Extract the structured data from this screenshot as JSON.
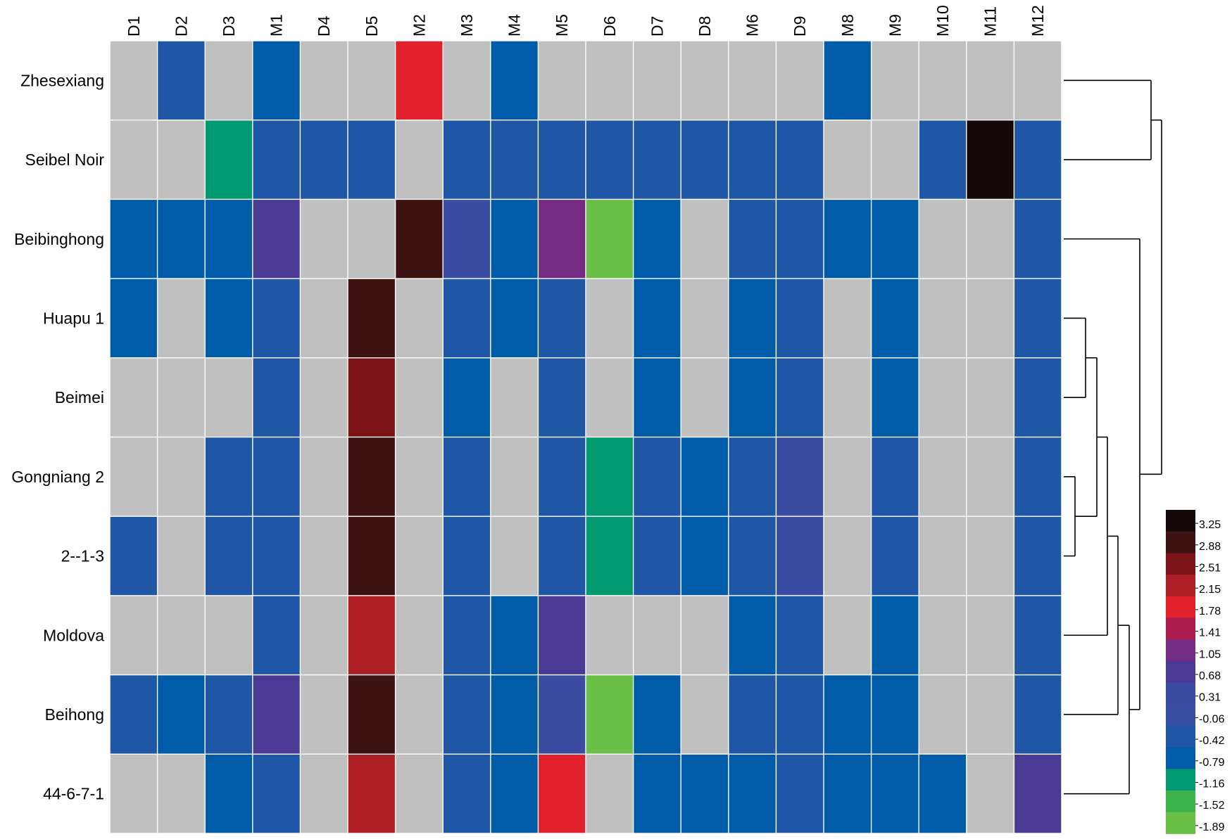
{
  "chart_data": {
    "type": "heatmap",
    "columns": [
      "D1",
      "D2",
      "D3",
      "M1",
      "D4",
      "D5",
      "M2",
      "M3",
      "M4",
      "M5",
      "D6",
      "D7",
      "D8",
      "M6",
      "D9",
      "M8",
      "M9",
      "M10",
      "M11",
      "M12"
    ],
    "rows": [
      "Zhesexiang",
      "Seibel Noir",
      "Beibinghong",
      "Huapu 1",
      "Beimei",
      "Gongniang 2",
      "2--1-3",
      "Moldova",
      "Beihong",
      "44-6-7-1"
    ],
    "values": [
      [
        null,
        -0.42,
        null,
        -0.79,
        null,
        null,
        1.78,
        null,
        -0.79,
        null,
        null,
        null,
        null,
        null,
        null,
        -0.79,
        null,
        null,
        null,
        null
      ],
      [
        null,
        null,
        -1.16,
        -0.42,
        -0.42,
        -0.42,
        null,
        -0.42,
        -0.42,
        -0.42,
        -0.42,
        -0.42,
        -0.42,
        -0.42,
        -0.42,
        null,
        null,
        -0.42,
        3.25,
        -0.42
      ],
      [
        -0.79,
        -0.79,
        -0.79,
        0.68,
        null,
        null,
        2.88,
        0.31,
        -0.79,
        1.05,
        -1.89,
        -0.79,
        null,
        -0.42,
        -0.42,
        -0.79,
        -0.79,
        null,
        null,
        -0.42
      ],
      [
        -0.79,
        null,
        -0.79,
        -0.42,
        null,
        2.88,
        null,
        -0.42,
        -0.79,
        -0.42,
        null,
        -0.79,
        null,
        -0.79,
        -0.42,
        null,
        -0.79,
        null,
        null,
        -0.42
      ],
      [
        null,
        null,
        null,
        -0.42,
        null,
        2.51,
        null,
        -0.79,
        null,
        -0.42,
        null,
        -0.79,
        null,
        -0.79,
        -0.42,
        null,
        -0.79,
        null,
        null,
        -0.42
      ],
      [
        null,
        null,
        -0.42,
        -0.42,
        null,
        2.88,
        null,
        -0.42,
        null,
        -0.42,
        -1.16,
        -0.42,
        -0.79,
        -0.42,
        0.31,
        null,
        -0.42,
        null,
        null,
        -0.42
      ],
      [
        -0.42,
        null,
        -0.42,
        -0.42,
        null,
        2.88,
        null,
        -0.42,
        null,
        -0.42,
        -1.16,
        -0.42,
        -0.79,
        -0.42,
        0.31,
        null,
        -0.42,
        null,
        null,
        -0.42
      ],
      [
        null,
        null,
        null,
        -0.42,
        null,
        2.15,
        null,
        -0.42,
        -0.79,
        0.68,
        null,
        null,
        null,
        -0.79,
        -0.42,
        null,
        -0.79,
        null,
        null,
        -0.42
      ],
      [
        -0.42,
        -0.79,
        -0.42,
        0.68,
        null,
        2.88,
        null,
        -0.42,
        -0.79,
        0.31,
        -1.89,
        -0.79,
        null,
        -0.42,
        -0.42,
        -0.79,
        -0.79,
        null,
        null,
        -0.42
      ],
      [
        null,
        null,
        -0.79,
        -0.42,
        null,
        2.15,
        null,
        -0.42,
        -0.79,
        1.78,
        null,
        -0.79,
        -0.79,
        -0.79,
        -0.42,
        -0.79,
        -0.79,
        -0.79,
        null,
        0.68
      ]
    ],
    "missing_color": "#c0c0c0",
    "colorbar": {
      "ticks": [
        "3.25",
        "2.88",
        "2.51",
        "2.15",
        "1.78",
        "1.41",
        "1.05",
        "0.68",
        "0.31",
        "-0.06",
        "-0.42",
        "-0.79",
        "-1.16",
        "-1.52",
        "-1.89"
      ],
      "colors": [
        "#140808",
        "#3c1212",
        "#7a1416",
        "#ac1e24",
        "#e0212c",
        "#ab1b4c",
        "#742b83",
        "#4b3a94",
        "#3a4ca1",
        "#394fa2",
        "#1f56a6",
        "#005ca8",
        "#009970",
        "#3bb34a",
        "#6abf46"
      ]
    },
    "dendrogram": {
      "position": "right",
      "merges": [
        {
          "left": "Gongniang 2",
          "right": "2--1-3"
        },
        {
          "left": "Huapu 1",
          "right": "Beimei"
        },
        {
          "left": "Huapu 1 + Beimei",
          "right": "Gongniang 2 + 2--1-3"
        },
        {
          "left": "previous",
          "right": "Moldova"
        },
        {
          "left": "previous",
          "right": "Beihong"
        },
        {
          "left": "previous",
          "right": "44-6-7-1"
        },
        {
          "left": "Beibinghong",
          "right": "previous"
        },
        {
          "left": "Zhesexiang",
          "right": "Seibel Noir"
        },
        {
          "left": "Zhesexiang + Seibel Noir",
          "right": "Beibinghong + rest"
        }
      ]
    }
  }
}
